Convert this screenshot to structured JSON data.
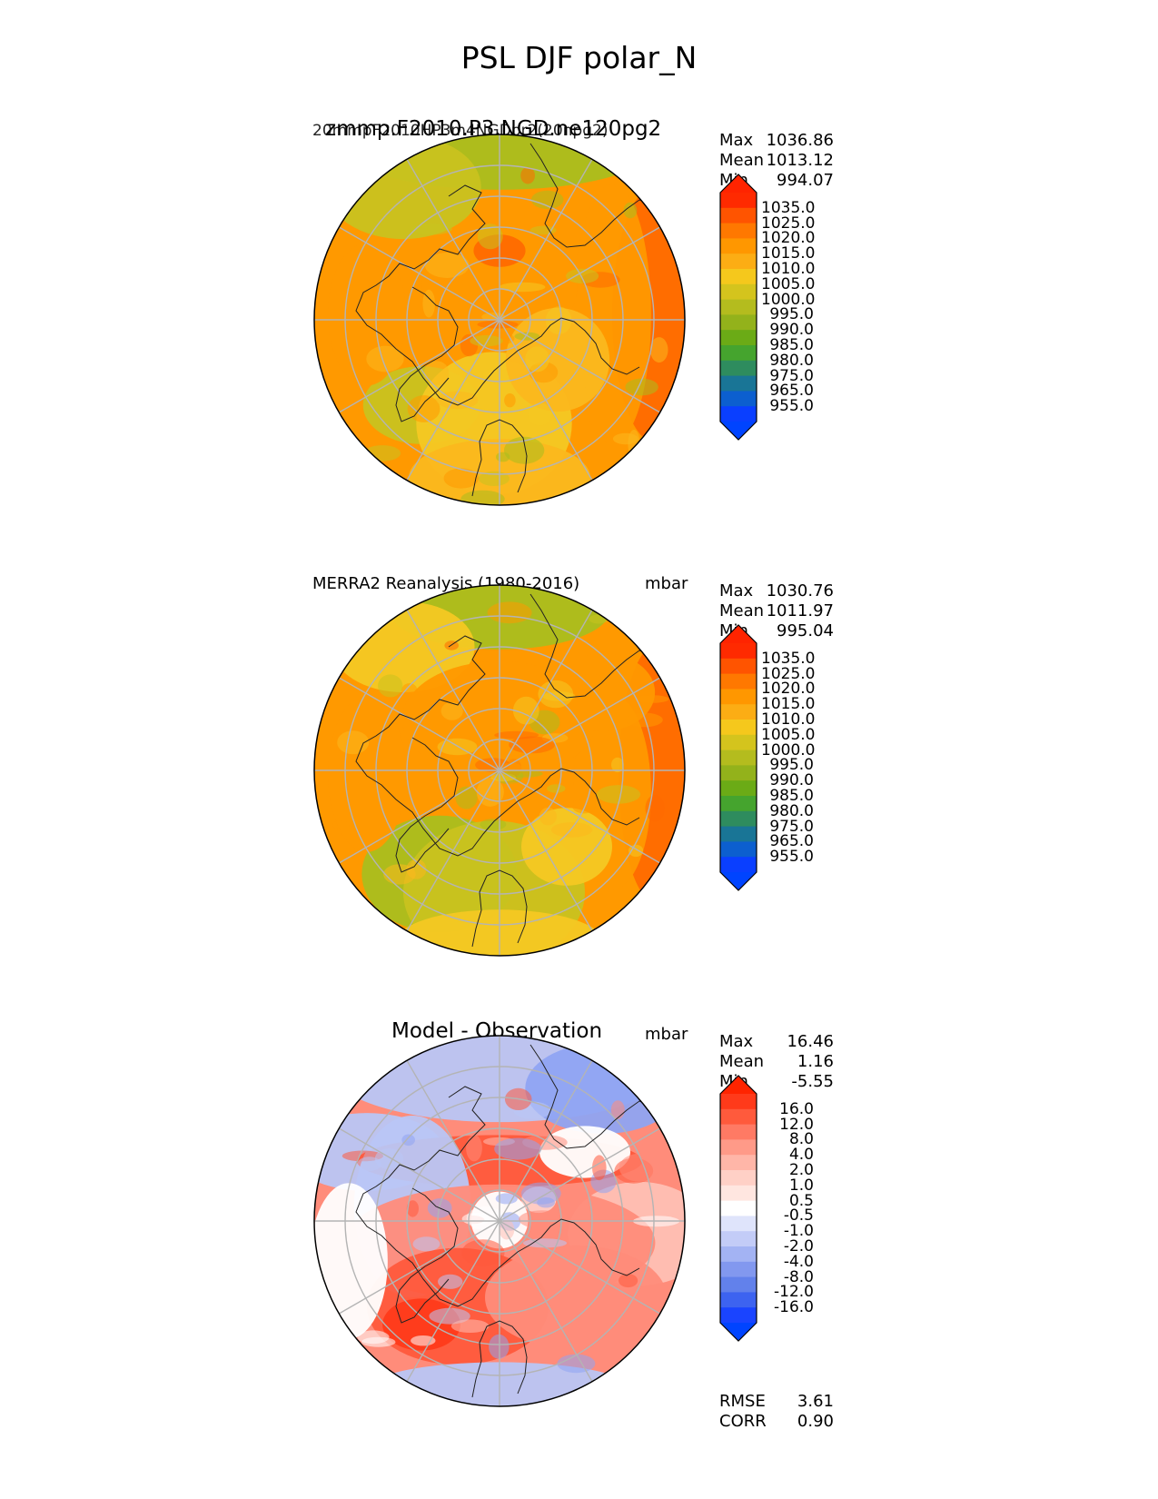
{
  "title": "PSL DJF polar_N",
  "panels": [
    {
      "id": "test",
      "heading": "zmmp.F2010.P3.NGD.ne120pg2",
      "heading_overlap": "20mmpF2010HP3m4NGDpr2(20npg2)",
      "units": "",
      "stats": {
        "max_label": "Max",
        "max": "1036.86",
        "mean_label": "Mean",
        "mean": "1013.12",
        "min_label": "Min",
        "min": "994.07"
      },
      "colorbar": {
        "labels": [
          "1035.0",
          "1025.0",
          "1020.0",
          "1015.0",
          "1010.0",
          "1005.0",
          "1000.0",
          "995.0",
          "990.0",
          "985.0",
          "980.0",
          "975.0",
          "965.0",
          "955.0"
        ],
        "colors": [
          "#ff2a00",
          "#ff5400",
          "#ff7800",
          "#ff9700",
          "#fcad14",
          "#f5c81c",
          "#d4c41d",
          "#b4bc1e",
          "#93b21b",
          "#6bab16",
          "#45a42e",
          "#2e8c5e",
          "#197596",
          "#0c5fcf",
          "#0a3fff"
        ],
        "top_color": "#ff2400",
        "bottom_color": "#0044ff"
      },
      "map": {
        "field": "model_psl",
        "palette": [
          "#ff6a00",
          "#ff9900",
          "#fbb81d",
          "#f4c823",
          "#c9c21f",
          "#aabe1d"
        ]
      }
    },
    {
      "id": "ref",
      "heading": "MERRA2 Reanalysis (1980-2016)",
      "units": "mbar",
      "stats": {
        "max_label": "Max",
        "max": "1030.76",
        "mean_label": "Mean",
        "mean": "1011.97",
        "min_label": "Min",
        "min": "995.04"
      },
      "colorbar": {
        "labels": [
          "1035.0",
          "1025.0",
          "1020.0",
          "1015.0",
          "1010.0",
          "1005.0",
          "1000.0",
          "995.0",
          "990.0",
          "985.0",
          "980.0",
          "975.0",
          "965.0",
          "955.0"
        ],
        "colors": [
          "#ff2a00",
          "#ff5400",
          "#ff7800",
          "#ff9700",
          "#fcad14",
          "#f5c81c",
          "#d4c41d",
          "#b4bc1e",
          "#93b21b",
          "#6bab16",
          "#45a42e",
          "#2e8c5e",
          "#197596",
          "#0c5fcf",
          "#0a3fff"
        ],
        "top_color": "#ff2400",
        "bottom_color": "#0044ff"
      },
      "map": {
        "field": "obs_psl",
        "palette": [
          "#ff6a00",
          "#ff9900",
          "#fbb81d",
          "#f4c823",
          "#c9c21f",
          "#aabe1d"
        ]
      }
    },
    {
      "id": "diff",
      "heading": "Model - Observation",
      "units": "mbar",
      "stats": {
        "max_label": "Max",
        "max": "16.46",
        "mean_label": "Mean",
        "mean": "1.16",
        "min_label": "Min",
        "min": "-5.55"
      },
      "colorbar": {
        "labels": [
          "16.0",
          "12.0",
          "8.0",
          "4.0",
          "2.0",
          "1.0",
          "0.5",
          "-0.5",
          "-1.0",
          "-2.0",
          "-4.0",
          "-8.0",
          "-12.0",
          "-16.0"
        ],
        "colors": [
          "#ff3a1a",
          "#ff5a3c",
          "#ff7a64",
          "#ff9a88",
          "#ffb6a8",
          "#ffd0c6",
          "#ffe6e0",
          "#ffffff",
          "#dfe4fb",
          "#c3ccf7",
          "#a3b3f3",
          "#8298ef",
          "#6281eb",
          "#3d63f0",
          "#1a44ff"
        ],
        "top_color": "#ff2400",
        "bottom_color": "#0044ff"
      },
      "footer": {
        "rmse_label": "RMSE",
        "rmse": "3.61",
        "corr_label": "CORR",
        "corr": "0.90"
      },
      "map": {
        "field": "difference",
        "palette": [
          "#ff5a3c",
          "#ff8c7a",
          "#ffc0b4",
          "#ffffff",
          "#b9c6f6",
          "#8fa4f2"
        ]
      }
    }
  ],
  "chart_data": [
    {
      "type": "heatmap",
      "projection": "north polar stereographic",
      "title": "zmmp.F2010.P3.NGD.ne120pg2",
      "variable": "PSL",
      "season": "DJF",
      "statistics": {
        "max": 1036.86,
        "mean": 1013.12,
        "min": 994.07
      },
      "levels": [
        955,
        965,
        975,
        980,
        985,
        990,
        995,
        1000,
        1005,
        1010,
        1015,
        1020,
        1025,
        1035
      ]
    },
    {
      "type": "heatmap",
      "projection": "north polar stereographic",
      "title": "MERRA2 Reanalysis (1980-2016)",
      "units": "mbar",
      "statistics": {
        "max": 1030.76,
        "mean": 1011.97,
        "min": 995.04
      },
      "levels": [
        955,
        965,
        975,
        980,
        985,
        990,
        995,
        1000,
        1005,
        1010,
        1015,
        1020,
        1025,
        1035
      ]
    },
    {
      "type": "heatmap",
      "projection": "north polar stereographic",
      "title": "Model - Observation",
      "units": "mbar",
      "statistics": {
        "max": 16.46,
        "mean": 1.16,
        "min": -5.55,
        "rmse": 3.61,
        "corr": 0.9
      },
      "levels": [
        -16,
        -12,
        -8,
        -4,
        -2,
        -1,
        -0.5,
        0.5,
        1,
        2,
        4,
        8,
        12,
        16
      ]
    }
  ]
}
